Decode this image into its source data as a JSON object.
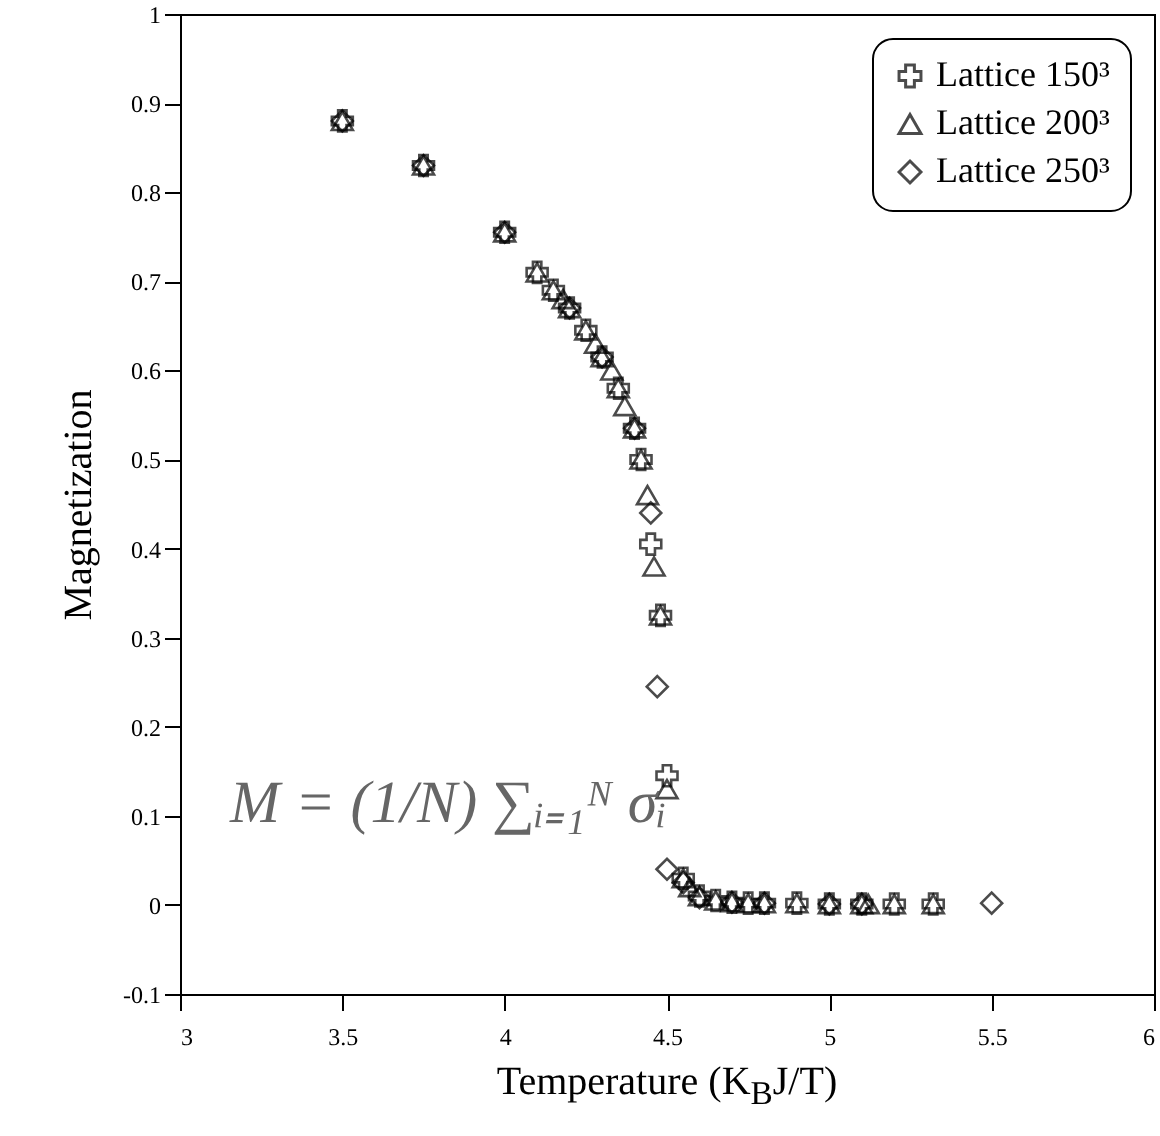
{
  "chart_data": {
    "type": "scatter",
    "xlabel": "Temperature (K$_{B}$J/T)",
    "ylabel": "Magnetization",
    "xlim": [
      3,
      6
    ],
    "xticks": [
      3,
      3.5,
      4,
      4.5,
      5,
      5.5,
      6
    ],
    "ylim": [
      -0.1,
      1
    ],
    "yticks": [
      -0.1,
      0,
      0.1,
      0.2,
      0.3,
      0.4,
      0.5,
      0.6,
      0.7,
      0.8,
      0.9,
      1
    ],
    "grid": false,
    "legend": "top right",
    "annotations": [
      "M = (1/N) ∑ᵢ₌₁ᴺ σᵢ"
    ],
    "series": [
      {
        "name": "Lattice 150³",
        "color": "#000000",
        "marker": "cross",
        "x": [
          3.5,
          3.75,
          4.0,
          4.1,
          4.15,
          4.2,
          4.25,
          4.3,
          4.35,
          4.4,
          4.42,
          4.45,
          4.48,
          4.5,
          4.55,
          4.6,
          4.65,
          4.7,
          4.75,
          4.8,
          4.9,
          5.0,
          5.1,
          5.2,
          5.32
        ],
        "values": [
          0.88,
          0.83,
          0.755,
          0.71,
          0.69,
          0.67,
          0.645,
          0.615,
          0.58,
          0.535,
          0.5,
          0.405,
          0.325,
          0.145,
          0.03,
          0.01,
          0.005,
          0.003,
          0.002,
          0.002,
          0.002,
          0.001,
          0.001,
          0.001,
          0.001
        ]
      },
      {
        "name": "Lattice 200³",
        "color": "#000000",
        "marker": "triangle",
        "x": [
          3.5,
          3.75,
          4.0,
          4.1,
          4.15,
          4.18,
          4.2,
          4.25,
          4.28,
          4.3,
          4.33,
          4.35,
          4.37,
          4.4,
          4.42,
          4.44,
          4.46,
          4.48,
          4.5,
          4.55,
          4.57,
          4.6,
          4.65,
          4.7,
          4.75,
          4.8,
          4.9,
          5.0,
          5.1,
          5.12,
          5.2,
          5.32
        ],
        "values": [
          0.88,
          0.83,
          0.755,
          0.71,
          0.69,
          0.68,
          0.67,
          0.645,
          0.63,
          0.615,
          0.6,
          0.58,
          0.56,
          0.535,
          0.5,
          0.46,
          0.38,
          0.325,
          0.13,
          0.03,
          0.02,
          0.01,
          0.005,
          0.003,
          0.002,
          0.002,
          0.002,
          0.001,
          0.001,
          0.001,
          0.001,
          0.001
        ]
      },
      {
        "name": "Lattice 250³",
        "color": "#000000",
        "marker": "diamond",
        "x": [
          3.5,
          3.75,
          4.0,
          4.2,
          4.3,
          4.4,
          4.45,
          4.47,
          4.5,
          4.55,
          4.6,
          4.7,
          4.8,
          5.0,
          5.1,
          5.5
        ],
        "values": [
          0.88,
          0.83,
          0.755,
          0.67,
          0.615,
          0.535,
          0.44,
          0.245,
          0.04,
          0.025,
          0.008,
          0.003,
          0.002,
          0.001,
          0.001,
          0.002
        ]
      }
    ]
  }
}
